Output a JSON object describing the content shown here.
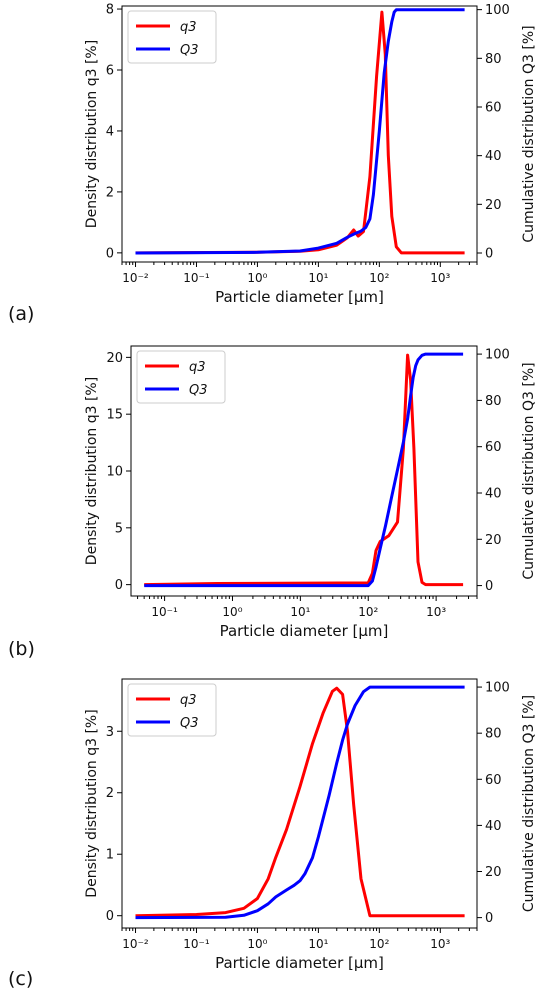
{
  "panels": [
    {
      "label": "(a)"
    },
    {
      "label": "(b)"
    },
    {
      "label": "(c)"
    }
  ],
  "colors": {
    "q3": "#ff0000",
    "Q3": "#0000ff"
  },
  "chart_data": [
    {
      "type": "line",
      "xlabel": "Particle diameter [μm]",
      "ylabel": "Density distribution q3 [%]",
      "y2label": "Cumulative distribution Q3 [%]",
      "xscale": "log",
      "xlim": [
        0.006,
        4000
      ],
      "xticks": [
        0.01,
        0.1,
        1,
        10,
        100,
        1000
      ],
      "xticklabels": [
        "10⁻²",
        "10⁻¹",
        "10⁰",
        "10¹",
        "10²",
        "10³"
      ],
      "ylim": [
        -0.3,
        8.1
      ],
      "yticks": [
        0,
        2,
        4,
        6,
        8
      ],
      "y2lim": [
        -3.7,
        101.5
      ],
      "y2ticks": [
        0,
        20,
        40,
        60,
        80,
        100
      ],
      "legend": "top-left",
      "series": [
        {
          "name": "q3",
          "axis": "left",
          "x": [
            0.01,
            1,
            5,
            10,
            20,
            30,
            38,
            45,
            55,
            70,
            90,
            110,
            125,
            140,
            160,
            190,
            230,
            2500
          ],
          "y": [
            0,
            0.02,
            0.05,
            0.1,
            0.25,
            0.5,
            0.75,
            0.55,
            0.7,
            2.5,
            5.8,
            7.9,
            6.5,
            3.2,
            1.2,
            0.2,
            0,
            0
          ]
        },
        {
          "name": "Q3",
          "axis": "right",
          "x": [
            0.01,
            1,
            5,
            10,
            20,
            30,
            40,
            50,
            60,
            70,
            80,
            100,
            120,
            140,
            160,
            175,
            190,
            2500
          ],
          "y": [
            0,
            0.3,
            0.8,
            2,
            4,
            6.5,
            8,
            9,
            10.5,
            14,
            24,
            50,
            74,
            87,
            95,
            99,
            100,
            100
          ]
        }
      ]
    },
    {
      "type": "line",
      "xlabel": "Particle diameter [μm]",
      "ylabel": "Density distribution q3 [%]",
      "y2label": "Cumulative distribution Q3 [%]",
      "xscale": "log",
      "xlim": [
        0.032,
        4000
      ],
      "xticks": [
        0.1,
        1,
        10,
        100,
        1000
      ],
      "xticklabels": [
        "10⁻¹",
        "10⁰",
        "10¹",
        "10²",
        "10³"
      ],
      "ylim": [
        -1,
        21
      ],
      "yticks": [
        0,
        5,
        10,
        15,
        20
      ],
      "y2lim": [
        -4.5,
        103.5
      ],
      "y2ticks": [
        0,
        20,
        40,
        60,
        80,
        100
      ],
      "legend": "top-left",
      "series": [
        {
          "name": "q3",
          "axis": "left",
          "x": [
            0.05,
            0.6,
            100,
            115,
            130,
            150,
            200,
            270,
            330,
            380,
            420,
            470,
            540,
            620,
            700,
            2500
          ],
          "y": [
            0,
            0.1,
            0.15,
            1,
            3,
            3.8,
            4.3,
            5.5,
            12,
            20.2,
            18,
            12,
            2,
            0.2,
            0,
            0
          ]
        },
        {
          "name": "Q3",
          "axis": "right",
          "x": [
            0.05,
            100,
            115,
            130,
            150,
            180,
            220,
            270,
            330,
            380,
            420,
            460,
            500,
            540,
            620,
            700,
            2500
          ],
          "y": [
            0,
            0,
            2,
            8,
            16,
            26,
            38,
            50,
            62,
            72,
            82,
            90,
            95,
            97.5,
            99.5,
            100,
            100
          ]
        }
      ]
    },
    {
      "type": "line",
      "xlabel": "Particle diameter [μm]",
      "ylabel": "Density distribution q3 [%]",
      "y2label": "Cumulative distribution Q3 [%]",
      "xscale": "log",
      "xlim": [
        0.006,
        4000
      ],
      "xticks": [
        0.01,
        0.1,
        1,
        10,
        100,
        1000
      ],
      "xticklabels": [
        "10⁻²",
        "10⁻¹",
        "10⁰",
        "10¹",
        "10²",
        "10³"
      ],
      "ylim": [
        -0.2,
        3.85
      ],
      "yticks": [
        0,
        1,
        2,
        3
      ],
      "y2lim": [
        -4.5,
        103.5
      ],
      "y2ticks": [
        0,
        20,
        40,
        60,
        80,
        100
      ],
      "legend": "top-left",
      "series": [
        {
          "name": "q3",
          "axis": "left",
          "x": [
            0.01,
            0.1,
            0.3,
            0.6,
            1,
            1.5,
            2,
            3,
            5,
            8,
            12,
            17,
            20,
            25,
            30,
            38,
            50,
            70,
            2500
          ],
          "y": [
            0,
            0.02,
            0.05,
            0.12,
            0.28,
            0.6,
            0.95,
            1.4,
            2.1,
            2.8,
            3.3,
            3.65,
            3.7,
            3.6,
            3.0,
            1.8,
            0.6,
            0,
            0
          ]
        },
        {
          "name": "Q3",
          "axis": "right",
          "x": [
            0.01,
            0.3,
            0.6,
            1,
            1.5,
            2,
            3,
            4,
            5,
            6,
            8,
            10,
            15,
            20,
            25,
            30,
            40,
            55,
            70,
            2500
          ],
          "y": [
            0,
            0.2,
            1,
            3,
            6,
            9,
            12,
            14,
            16,
            19,
            26,
            35,
            53,
            67,
            77,
            84,
            92,
            98,
            100,
            100
          ]
        }
      ]
    }
  ]
}
